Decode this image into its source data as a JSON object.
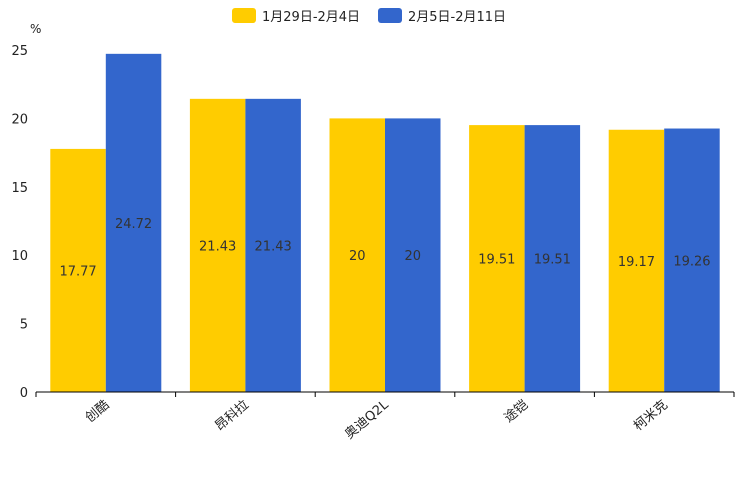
{
  "chart_data": {
    "type": "bar",
    "title": "",
    "ylabel": "%",
    "xlabel": "",
    "ylim": [
      0,
      25
    ],
    "yticks": [
      0,
      5,
      10,
      15,
      20,
      25
    ],
    "categories": [
      "创酷",
      "昂科拉",
      "奥迪Q2L",
      "途铠",
      "柯米克"
    ],
    "series": [
      {
        "name": "1月29日-2月4日",
        "color": "#FFCC00",
        "values": [
          17.77,
          21.43,
          20,
          19.51,
          19.17
        ]
      },
      {
        "name": "2月5日-2月11日",
        "color": "#3366CC",
        "values": [
          24.72,
          21.43,
          20,
          19.51,
          19.26
        ]
      }
    ],
    "legend_position": "top-center",
    "grid": false
  }
}
